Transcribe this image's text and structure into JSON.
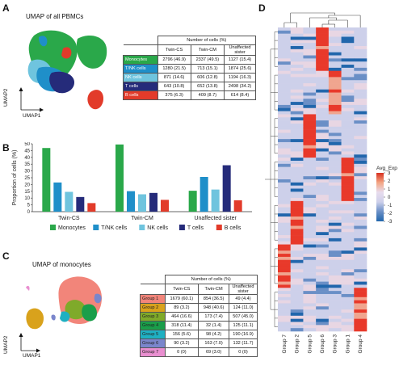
{
  "panels": {
    "A": "A",
    "B": "B",
    "C": "C",
    "D": "D"
  },
  "panelA": {
    "title": "UMAP of all PBMCs",
    "axis_x": "UMAP1",
    "axis_y": "UMAP2",
    "table": {
      "header_top": "Number of cells (%)",
      "cols": [
        "Twin-CS",
        "Twin-CM",
        "Unaffected sister"
      ],
      "rows": [
        {
          "label": "Monocytes",
          "color": "#2aa84a",
          "vals": [
            "2796 (46.9)",
            "2337 (49.5)",
            "1127 (15.4)"
          ]
        },
        {
          "label": "T/NK cells",
          "color": "#1f8fc9",
          "vals": [
            "1280 (21.5)",
            "713 (15.1)",
            "1874 (25.6)"
          ]
        },
        {
          "label": "NK cells",
          "color": "#6fc4de",
          "vals": [
            "871 (14.6)",
            "606 (12.8)",
            "1194 (16.3)"
          ]
        },
        {
          "label": "T cells",
          "color": "#252b7a",
          "vals": [
            "643 (10.8)",
            "652 (13.8)",
            "2498 (34.2)"
          ]
        },
        {
          "label": "B cells",
          "color": "#e23b2a",
          "vals": [
            "375 (6.3)",
            "409 (8.7)",
            "614 (8.4)"
          ]
        }
      ]
    }
  },
  "chart_data": [
    {
      "type": "bar",
      "ylabel": "Proportion of cells (%)",
      "ylim": [
        0,
        50
      ],
      "yticks": [
        0,
        5,
        10,
        15,
        20,
        25,
        30,
        35,
        40,
        45,
        50
      ],
      "categories": [
        "Twin-CS",
        "Twin-CM",
        "Unaffected sister"
      ],
      "series": [
        {
          "name": "Monocytes",
          "color": "#2aa84a",
          "values": [
            46.9,
            49.5,
            15.4
          ]
        },
        {
          "name": "T/NK cells",
          "color": "#1f8fc9",
          "values": [
            21.5,
            15.1,
            25.6
          ]
        },
        {
          "name": "NK cells",
          "color": "#6fc4de",
          "values": [
            14.6,
            12.8,
            16.3
          ]
        },
        {
          "name": "T cells",
          "color": "#252b7a",
          "values": [
            10.8,
            13.8,
            34.2
          ]
        },
        {
          "name": "B cells",
          "color": "#e23b2a",
          "values": [
            6.3,
            8.7,
            8.4
          ]
        }
      ],
      "legend": "bottom"
    },
    {
      "type": "heatmap",
      "legend_title": "Avg_Exp",
      "legend_ticks": [
        "3",
        "2",
        "1",
        "0",
        "-1",
        "-2",
        "-3"
      ],
      "columns": [
        "Group 7",
        "Group 2",
        "Group 5",
        "Group 6",
        "Group 3",
        "Group 1",
        "Group 4"
      ],
      "colorscale": [
        "#2166ac",
        "#6a8fc6",
        "#cdd0ea",
        "#e8d6e3",
        "#f0a58f",
        "#e8392a"
      ],
      "block_levels": [
        [
          0,
          0,
          0,
          3,
          0,
          0,
          0
        ],
        [
          0,
          0,
          0,
          0,
          2,
          0,
          0
        ],
        [
          0,
          0,
          3,
          0,
          0,
          0,
          0
        ],
        [
          0,
          0,
          0,
          0,
          0,
          3,
          0
        ],
        [
          0,
          3,
          0,
          0,
          0,
          0,
          0
        ],
        [
          3,
          0,
          0,
          0,
          0,
          0,
          0
        ],
        [
          0,
          0,
          0,
          0,
          0,
          0,
          3
        ]
      ]
    }
  ],
  "panelC": {
    "title": "UMAP of monocytes",
    "axis_x": "UMAP1",
    "axis_y": "UMAP2",
    "table": {
      "header_top": "Number of cells (%)",
      "cols": [
        "Twin-CS",
        "Twin-CM",
        "Unaffected sister"
      ],
      "rows": [
        {
          "label": "Group 1",
          "color": "#f2857a",
          "vals": [
            "1679 (60.1)",
            "854 (36.5)",
            "49 (4.4)"
          ]
        },
        {
          "label": "Group 2",
          "color": "#d9a21c",
          "vals": [
            "89 (3.2)",
            "948 (40.6)",
            "124 (11.0)"
          ]
        },
        {
          "label": "Group 3",
          "color": "#7faa2a",
          "vals": [
            "464 (16.6)",
            "173 (7.4)",
            "507 (45.0)"
          ]
        },
        {
          "label": "Group 4",
          "color": "#1a9e4a",
          "vals": [
            "318 (11.4)",
            "32 (1.4)",
            "125 (11.1)"
          ]
        },
        {
          "label": "Group 5",
          "color": "#1fb0c2",
          "vals": [
            "156 (5.6)",
            "98 (4.2)",
            "190 (16.9)"
          ]
        },
        {
          "label": "Group 6",
          "color": "#7a86cc",
          "vals": [
            "90 (3.2)",
            "163 (7.0)",
            "132 (11.7)"
          ]
        },
        {
          "label": "Group 7",
          "color": "#e98fd0",
          "vals": [
            "0 (0)",
            "69 (3.0)",
            "0 (0)"
          ]
        }
      ]
    }
  }
}
